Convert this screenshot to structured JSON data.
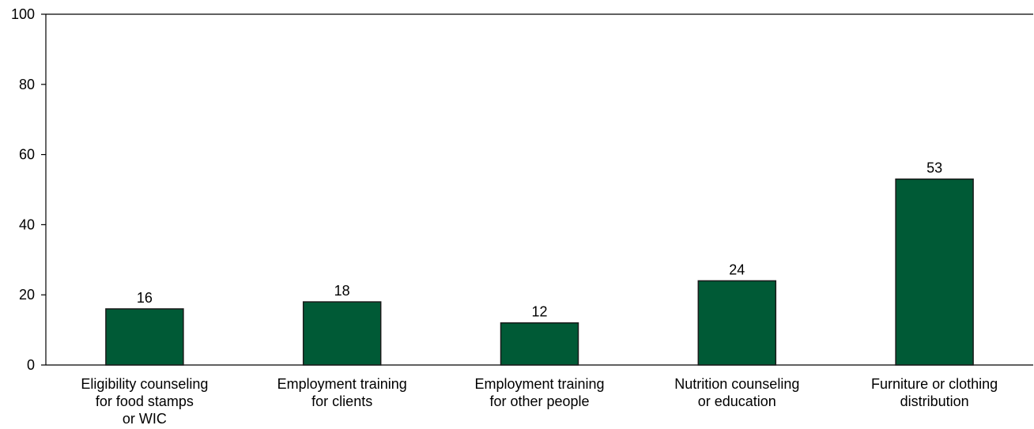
{
  "chart_data": {
    "type": "bar",
    "categories": [
      "Eligibility counseling for food stamps or WIC",
      "Employment training for clients",
      "Employment training for other people",
      "Nutrition counseling or education",
      "Furniture or clothing distribution"
    ],
    "category_lines": [
      [
        "Eligibility counseling",
        "for food stamps",
        "or WIC"
      ],
      [
        "Employment training",
        "for clients"
      ],
      [
        "Employment training",
        "for other people"
      ],
      [
        "Nutrition counseling",
        "or education"
      ],
      [
        "Furniture or clothing",
        "distribution"
      ]
    ],
    "values": [
      16,
      18,
      12,
      24,
      53
    ],
    "value_labels": [
      "16",
      "18",
      "12",
      "24",
      "53"
    ],
    "ylim": [
      0,
      100
    ],
    "yticks": [
      0,
      20,
      40,
      60,
      80,
      100
    ],
    "ytick_labels": [
      "0",
      "20",
      "40",
      "60",
      "80",
      "100"
    ],
    "title": "",
    "xlabel": "",
    "ylabel": "",
    "grid": false,
    "legend": "none",
    "bar_color": "#005a36",
    "bar_edge_color": "#1a1a1a"
  }
}
